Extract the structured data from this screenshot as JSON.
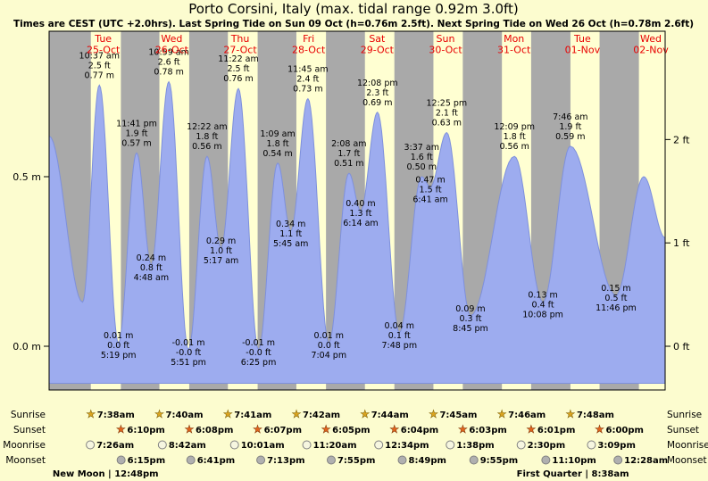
{
  "title": "Porto Corsini, Italy (max. tidal range 0.92m 3.0ft)",
  "subtitle": "Times are CEST (UTC +2.0hrs). Last Spring Tide on Sun 09 Oct (h=0.76m 2.5ft). Next Spring Tide on Wed 26 Oct (h=0.78m 2.6ft)",
  "colors": {
    "page_bg": "#FCFCCF",
    "day_band": "#FFFFD2",
    "night_band": "#A9A9A9",
    "tide_fill": "#9DACEF",
    "tide_stroke": "#7E90DC",
    "day_label": "#E80000",
    "text": "#000000",
    "sunrise_star": "#DAA420",
    "sunrise_star_stroke": "#7A5C00",
    "sunset_star": "#E2641D",
    "sunset_star_stroke": "#7A2E00",
    "moonrise_fill": "#F6F6E0",
    "moonset_fill": "#B0B0B0",
    "moon_stroke": "#808080"
  },
  "days": [
    {
      "name": "Tue",
      "date": "25-Oct"
    },
    {
      "name": "Wed",
      "date": "26-Oct"
    },
    {
      "name": "Thu",
      "date": "27-Oct"
    },
    {
      "name": "Fri",
      "date": "28-Oct"
    },
    {
      "name": "Sat",
      "date": "29-Oct"
    },
    {
      "name": "Sun",
      "date": "30-Oct"
    },
    {
      "name": "Mon",
      "date": "31-Oct"
    },
    {
      "name": "Tue",
      "date": "01-Nov"
    },
    {
      "name": "Wed",
      "date": "02-Nov"
    }
  ],
  "chart_data": {
    "type": "area",
    "title": "Porto Corsini, Italy tide curve",
    "max_tidal_range": "0.92m 3.0ft",
    "y_axis_left": [
      {
        "label": "0.0 m",
        "value_m": 0.0
      },
      {
        "label": "0.5 m",
        "value_m": 0.5
      }
    ],
    "y_axis_right": [
      {
        "label": "0 ft",
        "value_m": 0.0
      },
      {
        "label": "1 ft",
        "value_m": 0.3048
      },
      {
        "label": "2 ft",
        "value_m": 0.6096
      }
    ],
    "points": [
      {
        "day": -1,
        "time": "5:00 pm",
        "m": 0.62,
        "kind": "edge"
      },
      {
        "day": 0,
        "time": "4:45 am",
        "m": 0.13,
        "kind": "low"
      },
      {
        "day": 0,
        "time": "10:37 am",
        "m": 0.77,
        "kind": "high",
        "label_lines": [
          "10:37 am",
          "2.5 ft",
          "0.77 m"
        ]
      },
      {
        "day": 0,
        "time": "5:19 pm",
        "m": 0.01,
        "kind": "low",
        "label_lines": [
          "0.01 m",
          "0.0 ft",
          "5:19 pm"
        ]
      },
      {
        "day": 0,
        "time": "11:41 pm",
        "m": 0.57,
        "kind": "high",
        "label_lines": [
          "11:41 pm",
          "1.9 ft",
          "0.57 m"
        ]
      },
      {
        "day": 1,
        "time": "4:48 am",
        "m": 0.24,
        "kind": "low",
        "label_lines": [
          "0.24 m",
          "0.8 ft",
          "4:48 am"
        ]
      },
      {
        "day": 1,
        "time": "10:59 am",
        "m": 0.78,
        "kind": "high",
        "label_lines": [
          "10:59 am",
          "2.6 ft",
          "0.78 m"
        ]
      },
      {
        "day": 1,
        "time": "5:51 pm",
        "m": -0.01,
        "kind": "low",
        "label_lines": [
          "-0.01 m",
          "-0.0 ft",
          "5:51 pm"
        ]
      },
      {
        "day": 2,
        "time": "12:22 am",
        "m": 0.56,
        "kind": "high",
        "label_lines": [
          "12:22 am",
          "1.8 ft",
          "0.56 m"
        ]
      },
      {
        "day": 2,
        "time": "5:17 am",
        "m": 0.29,
        "kind": "low",
        "label_lines": [
          "0.29 m",
          "1.0 ft",
          "5:17 am"
        ]
      },
      {
        "day": 2,
        "time": "11:22 am",
        "m": 0.76,
        "kind": "high",
        "label_lines": [
          "11:22 am",
          "2.5 ft",
          "0.76 m"
        ]
      },
      {
        "day": 2,
        "time": "6:25 pm",
        "m": -0.01,
        "kind": "low",
        "label_lines": [
          "-0.01 m",
          "-0.0 ft",
          "6:25 pm"
        ]
      },
      {
        "day": 3,
        "time": "1:09 am",
        "m": 0.54,
        "kind": "high",
        "label_lines": [
          "1:09 am",
          "1.8 ft",
          "0.54 m"
        ]
      },
      {
        "day": 3,
        "time": "5:45 am",
        "m": 0.34,
        "kind": "low",
        "label_lines": [
          "0.34 m",
          "1.1 ft",
          "5:45 am"
        ]
      },
      {
        "day": 3,
        "time": "11:45 am",
        "m": 0.73,
        "kind": "high",
        "label_lines": [
          "11:45 am",
          "2.4 ft",
          "0.73 m"
        ]
      },
      {
        "day": 3,
        "time": "7:04 pm",
        "m": 0.01,
        "kind": "low",
        "label_lines": [
          "0.01 m",
          "0.0 ft",
          "7:04 pm"
        ]
      },
      {
        "day": 4,
        "time": "2:08 am",
        "m": 0.51,
        "kind": "high",
        "label_lines": [
          "2:08 am",
          "1.7 ft",
          "0.51 m"
        ]
      },
      {
        "day": 4,
        "time": "6:14 am",
        "m": 0.4,
        "kind": "low",
        "label_lines": [
          "0.40 m",
          "1.3 ft",
          "6:14 am"
        ]
      },
      {
        "day": 4,
        "time": "12:08 pm",
        "m": 0.69,
        "kind": "high",
        "label_lines": [
          "12:08 pm",
          "2.3 ft",
          "0.69 m"
        ]
      },
      {
        "day": 4,
        "time": "7:48 pm",
        "m": 0.04,
        "kind": "low",
        "label_lines": [
          "0.04 m",
          "0.1 ft",
          "7:48 pm"
        ]
      },
      {
        "day": 5,
        "time": "3:37 am",
        "m": 0.5,
        "kind": "high",
        "label_lines": [
          "3:37 am",
          "1.6 ft",
          "0.50 m"
        ]
      },
      {
        "day": 5,
        "time": "6:41 am",
        "m": 0.47,
        "kind": "low",
        "label_lines": [
          "0.47 m",
          "1.5 ft",
          "6:41 am"
        ]
      },
      {
        "day": 5,
        "time": "12:25 pm",
        "m": 0.63,
        "kind": "high",
        "label_lines": [
          "12:25 pm",
          "2.1 ft",
          "0.63 m"
        ]
      },
      {
        "day": 5,
        "time": "8:45 pm",
        "m": 0.09,
        "kind": "low",
        "label_lines": [
          "0.09 m",
          "0.3 ft",
          "8:45 pm"
        ]
      },
      {
        "day": 6,
        "time": "12:09 pm",
        "m": 0.56,
        "kind": "high",
        "label_lines": [
          "12:09 pm",
          "1.8 ft",
          "0.56 m"
        ]
      },
      {
        "day": 6,
        "time": "10:08 pm",
        "m": 0.13,
        "kind": "low",
        "label_lines": [
          "0.13 m",
          "0.4 ft",
          "10:08 pm"
        ]
      },
      {
        "day": 7,
        "time": "7:46 am",
        "m": 0.59,
        "kind": "high",
        "label_lines": [
          "7:46 am",
          "1.9 ft",
          "0.59 m"
        ]
      },
      {
        "day": 7,
        "time": "11:46 pm",
        "m": 0.15,
        "kind": "low",
        "label_lines": [
          "0.15 m",
          "0.5 ft",
          "11:46 pm"
        ]
      },
      {
        "day": 8,
        "time": "9:30 am",
        "m": 0.5,
        "kind": "high"
      },
      {
        "day": 8,
        "time": "5:00 pm",
        "m": 0.32,
        "kind": "edge"
      }
    ]
  },
  "sun_moon": {
    "rows": [
      {
        "name": "sunrise",
        "label": "Sunrise",
        "icon": "star-gold",
        "events": [
          {
            "day": 0,
            "time": "7:38am"
          },
          {
            "day": 1,
            "time": "7:40am"
          },
          {
            "day": 2,
            "time": "7:41am"
          },
          {
            "day": 3,
            "time": "7:42am"
          },
          {
            "day": 4,
            "time": "7:44am"
          },
          {
            "day": 5,
            "time": "7:45am"
          },
          {
            "day": 6,
            "time": "7:46am"
          },
          {
            "day": 7,
            "time": "7:48am"
          }
        ]
      },
      {
        "name": "sunset",
        "label": "Sunset",
        "icon": "star-orange",
        "events": [
          {
            "day": 0,
            "time": "6:10pm"
          },
          {
            "day": 1,
            "time": "6:08pm"
          },
          {
            "day": 2,
            "time": "6:07pm"
          },
          {
            "day": 3,
            "time": "6:05pm"
          },
          {
            "day": 4,
            "time": "6:04pm"
          },
          {
            "day": 5,
            "time": "6:03pm"
          },
          {
            "day": 6,
            "time": "6:01pm"
          },
          {
            "day": 7,
            "time": "6:00pm"
          }
        ]
      },
      {
        "name": "moonrise",
        "label": "Moonrise",
        "icon": "moon-light",
        "events": [
          {
            "day": 0,
            "time": "7:26am"
          },
          {
            "day": 1,
            "time": "8:42am"
          },
          {
            "day": 2,
            "time": "10:01am"
          },
          {
            "day": 3,
            "time": "11:20am"
          },
          {
            "day": 4,
            "time": "12:34pm"
          },
          {
            "day": 5,
            "time": "1:38pm"
          },
          {
            "day": 6,
            "time": "2:30pm"
          },
          {
            "day": 7,
            "time": "3:09pm"
          }
        ]
      },
      {
        "name": "moonset",
        "label": "Moonset",
        "icon": "moon-dark",
        "events": [
          {
            "day": 0,
            "time": "6:15pm"
          },
          {
            "day": 1,
            "time": "6:41pm"
          },
          {
            "day": 2,
            "time": "7:13pm"
          },
          {
            "day": 3,
            "time": "7:55pm"
          },
          {
            "day": 4,
            "time": "8:49pm"
          },
          {
            "day": 5,
            "time": "9:55pm"
          },
          {
            "day": 6,
            "time": "11:10pm"
          },
          {
            "day": 8,
            "time": "12:28am"
          }
        ]
      }
    ],
    "moon_phases": [
      {
        "label": "New Moon | 12:48pm",
        "day": 0,
        "time": "12:48pm"
      },
      {
        "label": "First Quarter | 8:38am",
        "day": 7,
        "time": "8:38am"
      }
    ]
  }
}
